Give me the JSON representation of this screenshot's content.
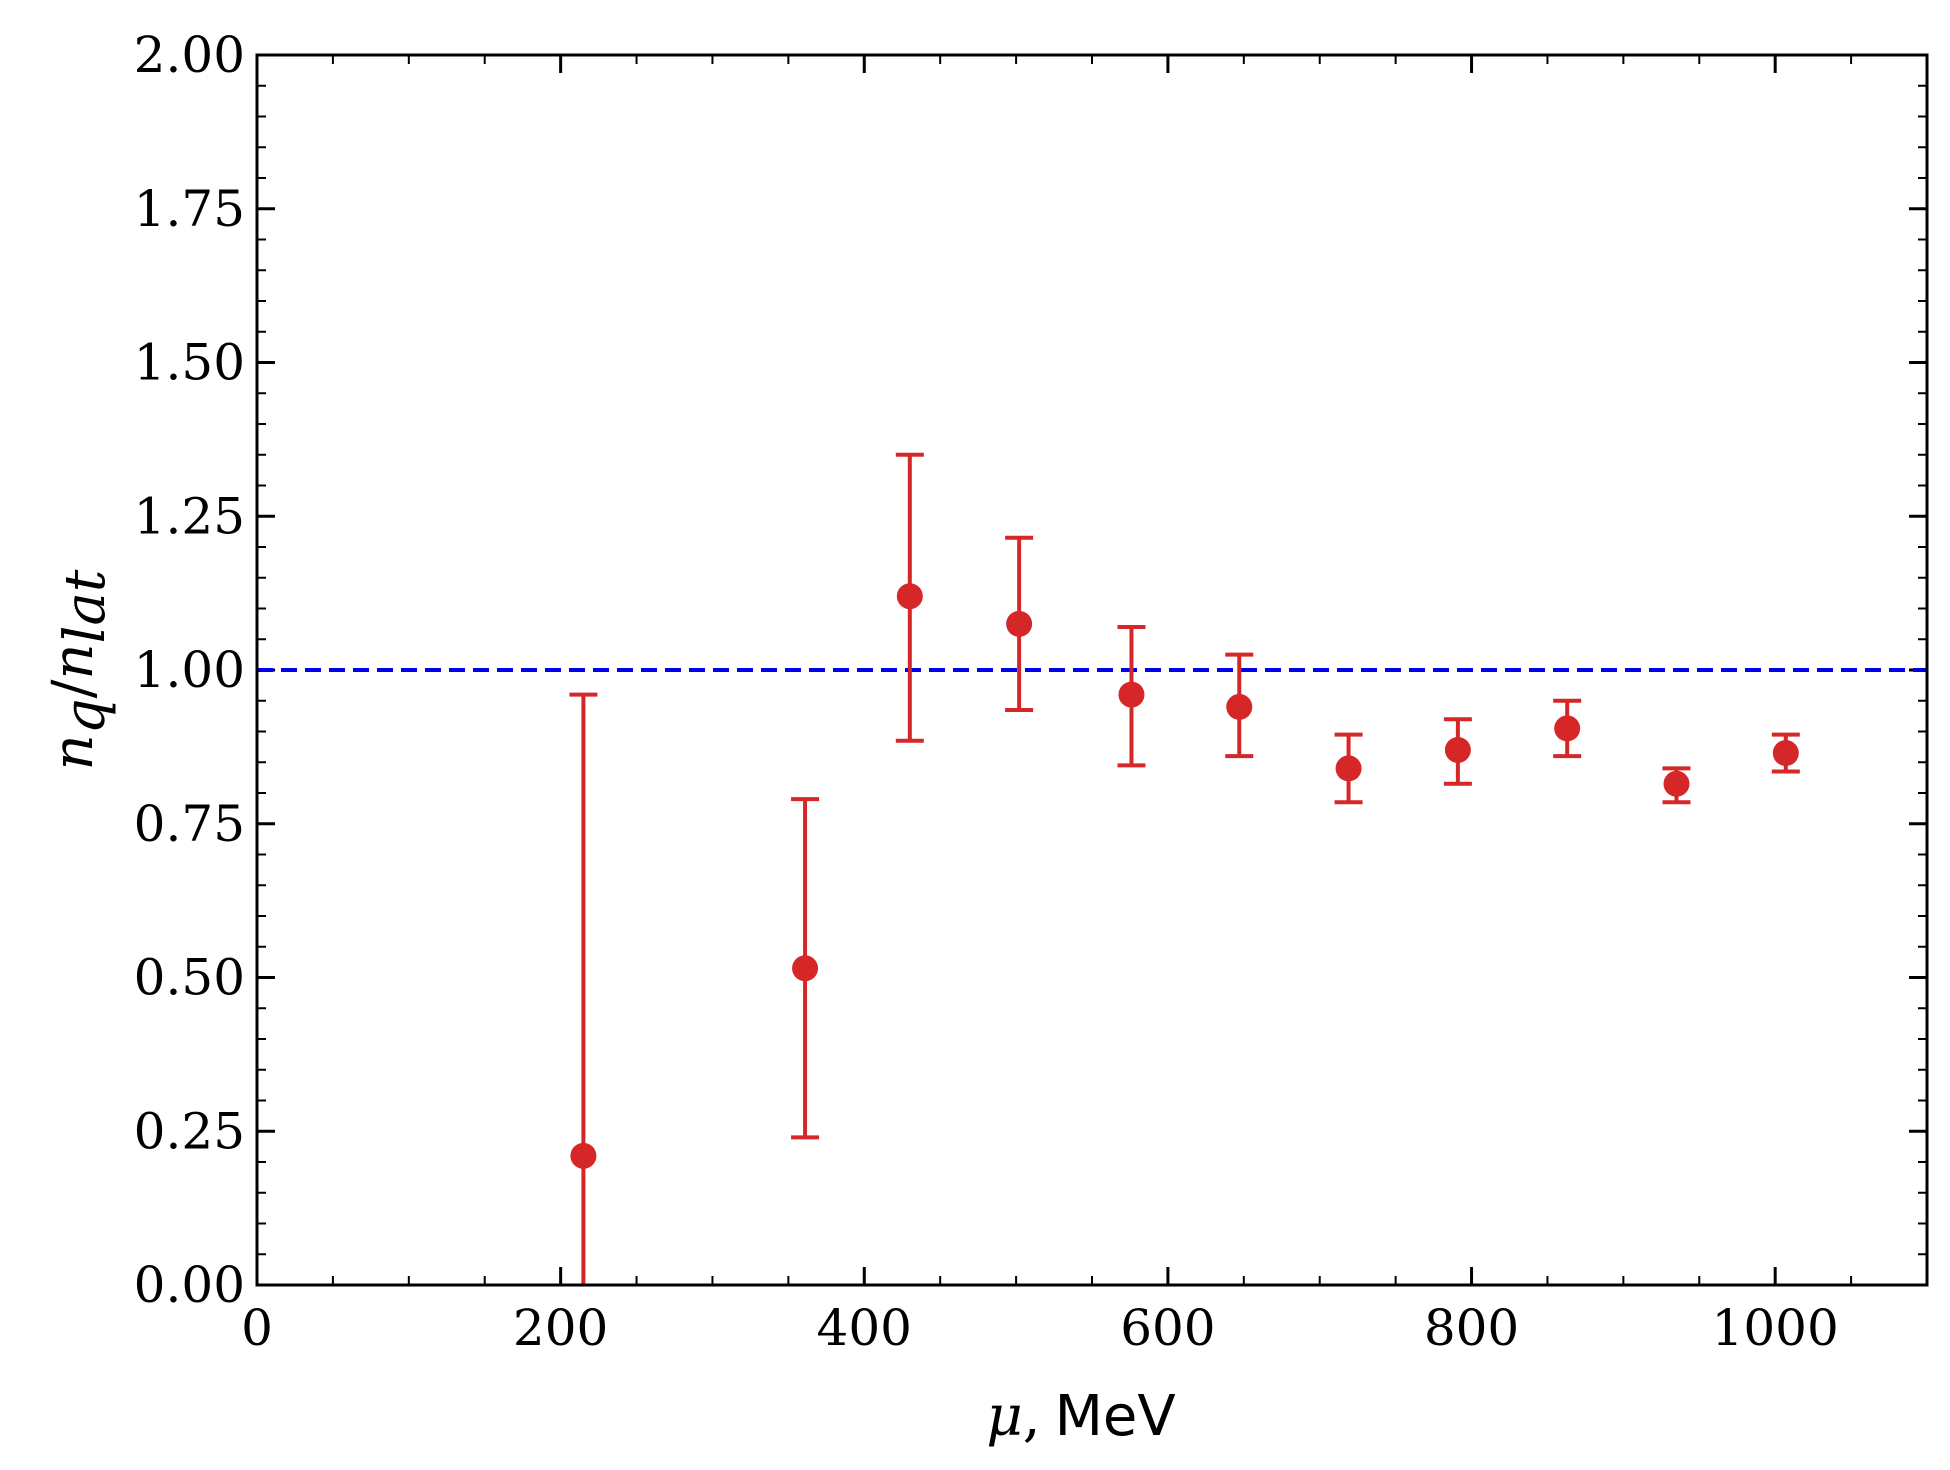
{
  "chart_data": {
    "type": "scatter",
    "title": "",
    "xlabel": {
      "symbol": "μ",
      "separator": ",",
      "unit": "MeV"
    },
    "ylabel": {
      "numerator": "n",
      "num_sub": "q",
      "slash": "/",
      "denominator": "n",
      "den_sub": "lat"
    },
    "xlim": [
      0,
      1100
    ],
    "ylim": [
      0,
      2.0
    ],
    "x_ticks": [
      0,
      200,
      400,
      600,
      800,
      1000
    ],
    "x_tick_labels": [
      "0",
      "200",
      "400",
      "600",
      "800",
      "1000"
    ],
    "y_ticks": [
      0,
      0.25,
      0.5,
      0.75,
      1.0,
      1.25,
      1.5,
      1.75,
      2.0
    ],
    "y_tick_labels": [
      "0.00",
      "0.25",
      "0.50",
      "0.75",
      "1.00",
      "1.25",
      "1.50",
      "1.75",
      "2.00"
    ],
    "x_minor_step": 50,
    "y_minor_step": 0.05,
    "grid": false,
    "reference_line": {
      "y": 1.0,
      "style": "dashed",
      "color": "#0000ee"
    },
    "series": [
      {
        "name": "n_q/n_lat",
        "color": "#d62728",
        "points": [
          {
            "x": 215,
            "y": 0.21,
            "lo": -0.05,
            "hi": 0.96
          },
          {
            "x": 361,
            "y": 0.515,
            "lo": 0.24,
            "hi": 0.79
          },
          {
            "x": 430,
            "y": 1.12,
            "lo": 0.885,
            "hi": 1.35
          },
          {
            "x": 502,
            "y": 1.075,
            "lo": 0.935,
            "hi": 1.215
          },
          {
            "x": 576,
            "y": 0.96,
            "lo": 0.845,
            "hi": 1.07
          },
          {
            "x": 647,
            "y": 0.94,
            "lo": 0.86,
            "hi": 1.025
          },
          {
            "x": 719,
            "y": 0.84,
            "lo": 0.785,
            "hi": 0.895
          },
          {
            "x": 791,
            "y": 0.87,
            "lo": 0.815,
            "hi": 0.92
          },
          {
            "x": 863,
            "y": 0.905,
            "lo": 0.86,
            "hi": 0.95
          },
          {
            "x": 935,
            "y": 0.815,
            "lo": 0.785,
            "hi": 0.84
          },
          {
            "x": 1007,
            "y": 0.865,
            "lo": 0.835,
            "hi": 0.895
          }
        ]
      }
    ]
  }
}
